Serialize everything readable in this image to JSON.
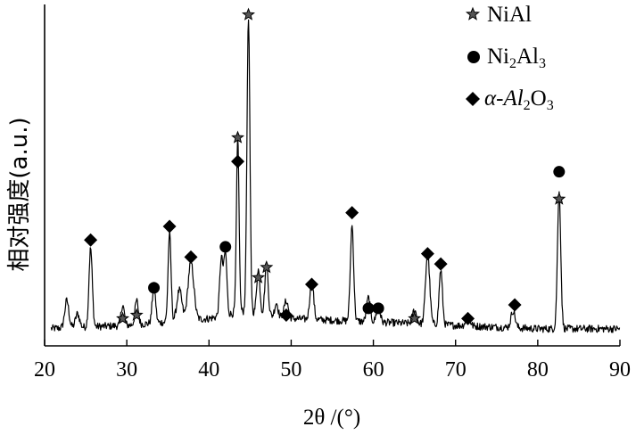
{
  "chart_data": {
    "type": "line",
    "xlabel": "2θ /(°)",
    "ylabel": "相对强度(a.u.)",
    "xlim": [
      20,
      90
    ],
    "xticks": [
      20,
      30,
      40,
      50,
      60,
      70,
      80,
      90
    ],
    "ylim": [
      0,
      100
    ],
    "grid": false,
    "legend_position": "top-right",
    "line_color": "#000000",
    "pattern": {
      "baseline": [
        [
          20,
          5
        ],
        [
          30,
          6
        ],
        [
          40,
          8
        ],
        [
          44,
          10
        ],
        [
          50,
          8
        ],
        [
          60,
          7
        ],
        [
          70,
          6
        ],
        [
          80,
          5
        ],
        [
          90,
          5
        ]
      ],
      "peaks": [
        {
          "x": 22.7,
          "h": 8,
          "w": 0.25
        },
        {
          "x": 24.0,
          "h": 4,
          "w": 0.25
        },
        {
          "x": 25.6,
          "h": 23,
          "w": 0.2
        },
        {
          "x": 29.5,
          "h": 6,
          "w": 0.2
        },
        {
          "x": 31.2,
          "h": 7,
          "w": 0.2
        },
        {
          "x": 33.3,
          "h": 11,
          "w": 0.2
        },
        {
          "x": 35.2,
          "h": 26,
          "w": 0.18
        },
        {
          "x": 36.4,
          "h": 9,
          "w": 0.3
        },
        {
          "x": 37.8,
          "h": 17,
          "w": 0.35
        },
        {
          "x": 41.5,
          "h": 17,
          "w": 0.2
        },
        {
          "x": 42.0,
          "h": 18,
          "w": 0.18
        },
        {
          "x": 43.5,
          "h": 51,
          "w": 0.16
        },
        {
          "x": 44.8,
          "h": 86,
          "w": 0.18
        },
        {
          "x": 46.0,
          "h": 13,
          "w": 0.2
        },
        {
          "x": 47.0,
          "h": 15,
          "w": 0.2
        },
        {
          "x": 48.2,
          "h": 4,
          "w": 0.2
        },
        {
          "x": 49.4,
          "h": 5,
          "w": 0.25
        },
        {
          "x": 52.5,
          "h": 12,
          "w": 0.22
        },
        {
          "x": 57.4,
          "h": 28,
          "w": 0.2
        },
        {
          "x": 59.4,
          "h": 7,
          "w": 0.22
        },
        {
          "x": 60.6,
          "h": 5,
          "w": 0.22
        },
        {
          "x": 65.0,
          "h": 4,
          "w": 0.25
        },
        {
          "x": 66.6,
          "h": 21,
          "w": 0.25
        },
        {
          "x": 68.2,
          "h": 16,
          "w": 0.2
        },
        {
          "x": 71.5,
          "h": 3,
          "w": 0.25
        },
        {
          "x": 77.0,
          "h": 5,
          "w": 0.25
        },
        {
          "x": 82.6,
          "h": 40,
          "w": 0.2
        }
      ]
    },
    "markers": [
      {
        "symbol": "star",
        "phase": "NiAl",
        "x": 29.5,
        "y": 8
      },
      {
        "symbol": "star",
        "phase": "NiAl",
        "x": 31.2,
        "y": 9
      },
      {
        "symbol": "star",
        "phase": "NiAl",
        "x": 43.5,
        "y": 61
      },
      {
        "symbol": "star",
        "phase": "NiAl",
        "x": 44.8,
        "y": 97
      },
      {
        "symbol": "star",
        "phase": "NiAl",
        "x": 46.0,
        "y": 20
      },
      {
        "symbol": "star",
        "phase": "NiAl",
        "x": 47.0,
        "y": 23
      },
      {
        "symbol": "star",
        "phase": "NiAl",
        "x": 65.0,
        "y": 8
      },
      {
        "symbol": "star",
        "phase": "NiAl",
        "x": 82.6,
        "y": 43
      },
      {
        "symbol": "circle",
        "phase": "Ni2Al3",
        "x": 33.3,
        "y": 17
      },
      {
        "symbol": "circle",
        "phase": "Ni2Al3",
        "x": 42.0,
        "y": 29
      },
      {
        "symbol": "circle",
        "phase": "Ni2Al3",
        "x": 59.4,
        "y": 11
      },
      {
        "symbol": "circle",
        "phase": "Ni2Al3",
        "x": 60.6,
        "y": 11
      },
      {
        "symbol": "circle",
        "phase": "Ni2Al3",
        "x": 82.6,
        "y": 51
      },
      {
        "symbol": "diamond",
        "phase": "α-Al2O3",
        "x": 25.6,
        "y": 31
      },
      {
        "symbol": "diamond",
        "phase": "α-Al2O3",
        "x": 35.2,
        "y": 35
      },
      {
        "symbol": "diamond",
        "phase": "α-Al2O3",
        "x": 37.8,
        "y": 26
      },
      {
        "symbol": "diamond",
        "phase": "α-Al2O3",
        "x": 43.5,
        "y": 54
      },
      {
        "symbol": "diamond",
        "phase": "α-Al2O3",
        "x": 49.4,
        "y": 9
      },
      {
        "symbol": "diamond",
        "phase": "α-Al2O3",
        "x": 52.5,
        "y": 18
      },
      {
        "symbol": "diamond",
        "phase": "α-Al2O3",
        "x": 57.4,
        "y": 39
      },
      {
        "symbol": "diamond",
        "phase": "α-Al2O3",
        "x": 66.6,
        "y": 27
      },
      {
        "symbol": "diamond",
        "phase": "α-Al2O3",
        "x": 68.2,
        "y": 24
      },
      {
        "symbol": "diamond",
        "phase": "α-Al2O3",
        "x": 71.5,
        "y": 8
      },
      {
        "symbol": "diamond",
        "phase": "α-Al2O3",
        "x": 77.2,
        "y": 12
      }
    ],
    "legend": [
      {
        "symbol": "star",
        "label": "NiAl",
        "base": "NiAl"
      },
      {
        "symbol": "circle",
        "label": "Ni2Al3",
        "base": "Ni",
        "sub1": "2",
        "mid": "Al",
        "sub2": "3"
      },
      {
        "symbol": "diamond",
        "label": "α-Al2O3",
        "base": "α-Al",
        "sub1": "2",
        "mid": "O",
        "sub2": "3"
      }
    ]
  }
}
